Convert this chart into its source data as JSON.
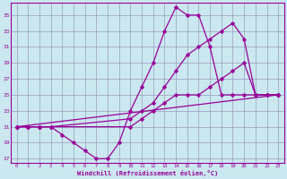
{
  "xlabel": "Windchill (Refroidissement éolien,°C)",
  "bg_color": "#cbe8f0",
  "line_color": "#990099",
  "grid_color": "#9999bb",
  "xlim": [
    -0.5,
    23.5
  ],
  "ylim": [
    16.5,
    36.5
  ],
  "xticks": [
    0,
    1,
    2,
    3,
    4,
    5,
    6,
    7,
    8,
    9,
    10,
    11,
    12,
    13,
    14,
    15,
    16,
    17,
    18,
    19,
    20,
    21,
    22,
    23
  ],
  "yticks": [
    17,
    19,
    21,
    23,
    25,
    27,
    29,
    31,
    33,
    35
  ],
  "lines": [
    {
      "x": [
        0,
        1,
        2,
        3,
        4,
        5,
        6,
        7,
        8,
        9,
        10,
        11,
        12,
        13,
        14,
        15,
        16,
        17,
        18,
        19,
        20,
        21,
        22,
        23
      ],
      "y": [
        21,
        21,
        21,
        21,
        20,
        19,
        18,
        17,
        17,
        19,
        23,
        26,
        29,
        33,
        36,
        35,
        35,
        31,
        25,
        25,
        25,
        25,
        25,
        25
      ]
    },
    {
      "x": [
        0,
        1,
        2,
        3,
        10,
        11,
        12,
        13,
        14,
        15,
        16,
        17,
        18,
        19,
        20,
        21,
        22,
        23
      ],
      "y": [
        21,
        21,
        21,
        21,
        22,
        23,
        24,
        26,
        28,
        30,
        31,
        32,
        33,
        34,
        32,
        25,
        25,
        25
      ]
    },
    {
      "x": [
        0,
        1,
        2,
        3,
        10,
        11,
        12,
        13,
        14,
        15,
        16,
        17,
        18,
        19,
        20,
        21,
        22,
        23
      ],
      "y": [
        21,
        21,
        21,
        21,
        21,
        22,
        23,
        24,
        25,
        25,
        25,
        26,
        27,
        28,
        29,
        25,
        25,
        25
      ]
    },
    {
      "x": [
        0,
        23
      ],
      "y": [
        21,
        25
      ]
    }
  ]
}
